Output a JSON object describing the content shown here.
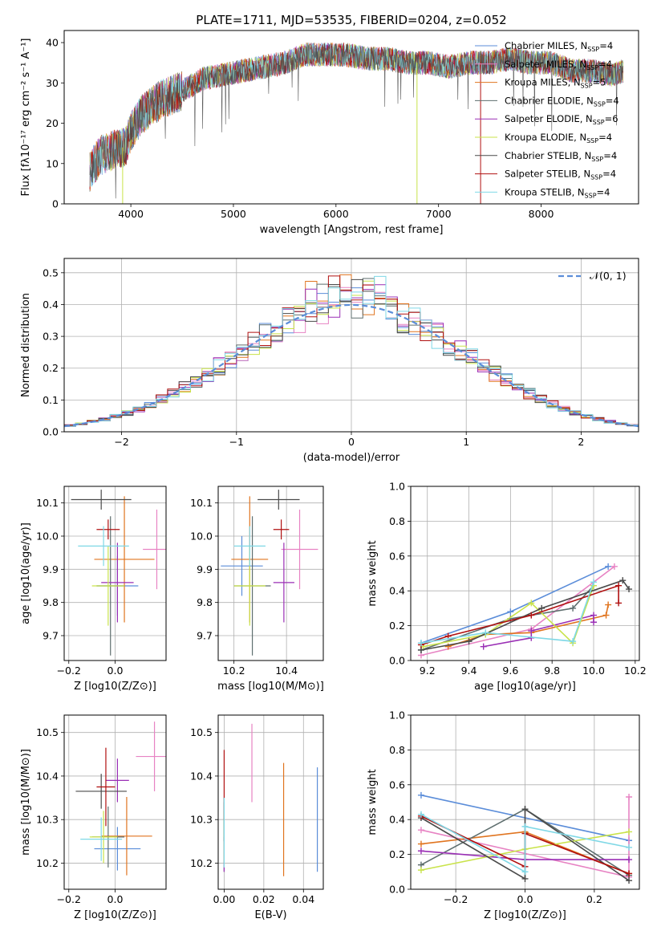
{
  "figure_title": "PLATE=1711, MJD=53535, FIBERID=0204, z=0.052",
  "chart_data": [
    {
      "id": "spectrum",
      "type": "line",
      "title": "PLATE=1711, MJD=53535, FIBERID=0204, z=0.052",
      "xlabel": "wavelength [Angstrom, rest frame]",
      "ylabel": "Flux [fλ10⁻¹⁷ erg cm⁻² s⁻¹ A⁻¹]",
      "xlim": [
        3350,
        8950
      ],
      "ylim": [
        0,
        43
      ],
      "xticks": [
        4000,
        5000,
        6000,
        7000,
        8000
      ],
      "yticks": [
        0,
        10,
        20,
        30,
        40
      ],
      "grid": false,
      "legend_position": "upper-right",
      "series": [
        {
          "name": "Chabrier MILES, N_SSP=4",
          "color": "#5b8dd9"
        },
        {
          "name": "Salpeter MILES, N_SSP=4",
          "color": "#e783c3"
        },
        {
          "name": "Kroupa MILES, N_SSP=5",
          "color": "#e0741f"
        },
        {
          "name": "Chabrier ELODIE, N_SSP=4",
          "color": "#5e6e6e"
        },
        {
          "name": "Salpeter ELODIE, N_SSP=6",
          "color": "#9a2fb5"
        },
        {
          "name": "Kroupa ELODIE, N_SSP=4",
          "color": "#c9e34a"
        },
        {
          "name": "Chabrier STELIB, N_SSP=4",
          "color": "#4a4a4a"
        },
        {
          "name": "Salpeter STELIB, N_SSP=4",
          "color": "#b01010"
        },
        {
          "name": "Kroupa STELIB, N_SSP=4",
          "color": "#7fd8e6"
        }
      ],
      "continuum": {
        "x": [
          3600,
          3700,
          3800,
          3900,
          3950,
          4000,
          4100,
          4200,
          4300,
          4400,
          4500,
          4700,
          4900,
          5100,
          5300,
          5500,
          5700,
          5900,
          6100,
          6300,
          6500,
          6700,
          6900,
          7100,
          7300,
          7500,
          7700,
          7900,
          8100,
          8300,
          8500,
          8700,
          8800
        ],
        "y": [
          8,
          12,
          13,
          14,
          14,
          18,
          22,
          24,
          26,
          27,
          28,
          31,
          32,
          33,
          34,
          35,
          37,
          37,
          37,
          36,
          36,
          35,
          35,
          34,
          35,
          35,
          36,
          35,
          35,
          33,
          33,
          32,
          33
        ]
      }
    },
    {
      "id": "residuals",
      "type": "area",
      "xlabel": "(data-model)/error",
      "ylabel": "Normed distribution",
      "xlim": [
        -2.5,
        2.5
      ],
      "ylim": [
        0,
        0.545
      ],
      "xticks": [
        -2,
        -1,
        0,
        1,
        2
      ],
      "yticks": [
        0.0,
        0.1,
        0.2,
        0.3,
        0.4,
        0.5
      ],
      "grid": true,
      "legend_position": "upper-right",
      "legend": [
        {
          "name": "𝒩(0, 1)",
          "color": "#5b8dd9",
          "dashed": true
        }
      ],
      "bin_width": 0.1
    },
    {
      "id": "z-age",
      "type": "scatter",
      "xlabel": "Z [log10(Z/Z⊙)]",
      "ylabel": "age  [log10(age/yr)]",
      "xlim": [
        -0.22,
        0.22
      ],
      "ylim": [
        9.625,
        10.15
      ],
      "xticks": [
        -0.2,
        0.0
      ],
      "yticks": [
        9.7,
        9.8,
        9.9,
        10.0,
        10.1
      ],
      "grid": true,
      "points": [
        {
          "x": 0.01,
          "y": 9.85,
          "xerr": 0.09,
          "yerr": 0.09,
          "color": "#5b8dd9"
        },
        {
          "x": 0.18,
          "y": 9.96,
          "xerr": 0.06,
          "yerr": 0.12,
          "color": "#e783c3"
        },
        {
          "x": 0.04,
          "y": 9.93,
          "xerr": 0.13,
          "yerr": 0.19,
          "color": "#e0741f"
        },
        {
          "x": -0.02,
          "y": 9.85,
          "xerr": 0.06,
          "yerr": 0.21,
          "color": "#5e6e6e"
        },
        {
          "x": 0.01,
          "y": 9.86,
          "xerr": 0.07,
          "yerr": 0.12,
          "color": "#9a2fb5"
        },
        {
          "x": -0.03,
          "y": 9.85,
          "xerr": 0.07,
          "yerr": 0.12,
          "color": "#c9e34a"
        },
        {
          "x": -0.06,
          "y": 10.11,
          "xerr": 0.13,
          "yerr": 0.03,
          "color": "#4a4a4a"
        },
        {
          "x": -0.03,
          "y": 10.02,
          "xerr": 0.05,
          "yerr": 0.03,
          "color": "#b01010"
        },
        {
          "x": -0.05,
          "y": 9.97,
          "xerr": 0.11,
          "yerr": 0.06,
          "color": "#7fd8e6"
        }
      ]
    },
    {
      "id": "mass-age",
      "type": "scatter",
      "xlabel": "mass [log10(M/M⊙)]",
      "ylabel": "",
      "xlim": [
        10.14,
        10.54
      ],
      "ylim": [
        9.625,
        10.15
      ],
      "xticks": [
        10.2,
        10.4
      ],
      "yticks": [
        9.7,
        9.8,
        9.9,
        10.0,
        10.1
      ],
      "grid": true,
      "points": [
        {
          "x": 10.23,
          "y": 9.91,
          "xerr": 0.08,
          "yerr": 0.09,
          "color": "#5b8dd9"
        },
        {
          "x": 10.45,
          "y": 9.96,
          "xerr": 0.07,
          "yerr": 0.12,
          "color": "#e783c3"
        },
        {
          "x": 10.26,
          "y": 9.93,
          "xerr": 0.07,
          "yerr": 0.19,
          "color": "#e0741f"
        },
        {
          "x": 10.27,
          "y": 9.85,
          "xerr": 0.07,
          "yerr": 0.21,
          "color": "#5e6e6e"
        },
        {
          "x": 10.39,
          "y": 9.86,
          "xerr": 0.04,
          "yerr": 0.12,
          "color": "#9a2fb5"
        },
        {
          "x": 10.26,
          "y": 9.85,
          "xerr": 0.06,
          "yerr": 0.12,
          "color": "#c9e34a"
        },
        {
          "x": 10.37,
          "y": 10.11,
          "xerr": 0.08,
          "yerr": 0.03,
          "color": "#4a4a4a"
        },
        {
          "x": 10.38,
          "y": 10.02,
          "xerr": 0.03,
          "yerr": 0.03,
          "color": "#b01010"
        },
        {
          "x": 10.26,
          "y": 9.97,
          "xerr": 0.06,
          "yerr": 0.06,
          "color": "#7fd8e6"
        }
      ]
    },
    {
      "id": "age-weight",
      "type": "line",
      "xlabel": "age  [log10(age/yr)]",
      "ylabel": "mass weight",
      "xlim": [
        9.12,
        10.22
      ],
      "ylim": [
        0,
        1.0
      ],
      "xticks": [
        9.2,
        9.4,
        9.6,
        9.8,
        10.0,
        10.2
      ],
      "yticks": [
        0.0,
        0.2,
        0.4,
        0.6,
        0.8,
        1.0
      ],
      "grid": true,
      "series": [
        {
          "color": "#5b8dd9",
          "points": [
            [
              9.17,
              0.1
            ],
            [
              9.6,
              0.28
            ],
            [
              10.07,
              0.54
            ]
          ]
        },
        {
          "color": "#e783c3",
          "points": [
            [
              9.17,
              0.03
            ],
            [
              9.7,
              0.18
            ],
            [
              10.1,
              0.54
            ]
          ]
        },
        {
          "color": "#e0741f",
          "points": [
            [
              9.3,
              0.08
            ],
            [
              9.48,
              0.15
            ],
            [
              9.7,
              0.16
            ],
            [
              10.06,
              0.26
            ],
            [
              10.07,
              0.32
            ]
          ]
        },
        {
          "color": "#5e6e6e",
          "points": [
            [
              9.17,
              0.06
            ],
            [
              9.6,
              0.24
            ],
            [
              9.9,
              0.3
            ],
            [
              10.0,
              0.43
            ]
          ]
        },
        {
          "color": "#9a2fb5",
          "points": [
            [
              9.47,
              0.08
            ],
            [
              9.7,
              0.13
            ],
            [
              9.7,
              0.17
            ],
            [
              10.0,
              0.26
            ],
            [
              10.0,
              0.22
            ]
          ]
        },
        {
          "color": "#c9e34a",
          "points": [
            [
              9.18,
              0.08
            ],
            [
              9.48,
              0.15
            ],
            [
              9.7,
              0.33
            ],
            [
              9.9,
              0.1
            ],
            [
              10.0,
              0.43
            ]
          ]
        },
        {
          "color": "#4a4a4a",
          "points": [
            [
              9.17,
              0.06
            ],
            [
              9.4,
              0.11
            ],
            [
              9.75,
              0.3
            ],
            [
              10.14,
              0.46
            ],
            [
              10.17,
              0.41
            ]
          ]
        },
        {
          "color": "#b01010",
          "points": [
            [
              9.17,
              0.09
            ],
            [
              9.3,
              0.14
            ],
            [
              9.7,
              0.26
            ],
            [
              10.12,
              0.43
            ],
            [
              10.12,
              0.33
            ]
          ]
        },
        {
          "color": "#7fd8e6",
          "points": [
            [
              9.17,
              0.1
            ],
            [
              9.48,
              0.16
            ],
            [
              9.9,
              0.11
            ],
            [
              10.0,
              0.45
            ]
          ]
        }
      ]
    },
    {
      "id": "z-mass",
      "type": "scatter",
      "xlabel": "Z [log10(Z/Z⊙)]",
      "ylabel": "mass [log10(M/M⊙)]",
      "xlim": [
        -0.22,
        0.22
      ],
      "ylim": [
        10.14,
        10.54
      ],
      "xticks": [
        -0.2,
        0.0
      ],
      "yticks": [
        10.2,
        10.3,
        10.4,
        10.5
      ],
      "grid": true,
      "points": [
        {
          "x": 0.01,
          "y": 10.233,
          "xerr": 0.1,
          "yerr": 0.05,
          "color": "#5b8dd9"
        },
        {
          "x": 0.17,
          "y": 10.445,
          "xerr": 0.08,
          "yerr": 0.08,
          "color": "#e783c3"
        },
        {
          "x": 0.05,
          "y": 10.262,
          "xerr": 0.11,
          "yerr": 0.09,
          "color": "#e0741f"
        },
        {
          "x": -0.03,
          "y": 10.26,
          "xerr": 0.07,
          "yerr": 0.07,
          "color": "#5e6e6e"
        },
        {
          "x": 0.01,
          "y": 10.39,
          "xerr": 0.05,
          "yerr": 0.05,
          "color": "#9a2fb5"
        },
        {
          "x": -0.05,
          "y": 10.26,
          "xerr": 0.06,
          "yerr": 0.06,
          "color": "#c9e34a"
        },
        {
          "x": -0.06,
          "y": 10.365,
          "xerr": 0.11,
          "yerr": 0.04,
          "color": "#4a4a4a"
        },
        {
          "x": -0.04,
          "y": 10.375,
          "xerr": 0.04,
          "yerr": 0.09,
          "color": "#b01010"
        },
        {
          "x": -0.06,
          "y": 10.255,
          "xerr": 0.09,
          "yerr": 0.05,
          "color": "#7fd8e6"
        }
      ]
    },
    {
      "id": "ebv-mass",
      "type": "scatter",
      "xlabel": "E(B-V)",
      "ylabel": "",
      "xlim": [
        -0.003,
        0.05
      ],
      "ylim": [
        10.14,
        10.54
      ],
      "xticks": [
        0.0,
        0.02,
        0.04
      ],
      "yticks": [
        10.2,
        10.3,
        10.4,
        10.5
      ],
      "grid": true,
      "points": [
        {
          "x": 0.047,
          "y": 10.3,
          "xerr": 0,
          "yerr": 0.12,
          "color": "#5b8dd9"
        },
        {
          "x": 0.014,
          "y": 10.43,
          "xerr": 0,
          "yerr": 0.09,
          "color": "#e783c3"
        },
        {
          "x": 0.03,
          "y": 10.3,
          "xerr": 0,
          "yerr": 0.13,
          "color": "#e0741f"
        },
        {
          "x": 0.0,
          "y": 10.26,
          "xerr": 0,
          "yerr": 0.08,
          "color": "#5e6e6e"
        },
        {
          "x": 0.0,
          "y": 10.22,
          "xerr": 0,
          "yerr": 0.04,
          "color": "#9a2fb5"
        },
        {
          "x": 0.0,
          "y": 10.26,
          "xerr": 0,
          "yerr": 0.06,
          "color": "#c9e34a"
        },
        {
          "x": 0.0,
          "y": 10.3,
          "xerr": 0,
          "yerr": 0.05,
          "color": "#4a4a4a"
        },
        {
          "x": 0.0,
          "y": 10.38,
          "xerr": 0,
          "yerr": 0.08,
          "color": "#b01010"
        },
        {
          "x": 0.0,
          "y": 10.27,
          "xerr": 0,
          "yerr": 0.08,
          "color": "#7fd8e6"
        }
      ]
    },
    {
      "id": "z-weight",
      "type": "line",
      "xlabel": "Z [log10(Z/Z⊙)]",
      "ylabel": "mass weight",
      "xlim": [
        -0.33,
        0.33
      ],
      "ylim": [
        0,
        1.0
      ],
      "xticks": [
        -0.2,
        0.0,
        0.2
      ],
      "yticks": [
        0.0,
        0.2,
        0.4,
        0.6,
        0.8,
        1.0
      ],
      "grid": true,
      "series": [
        {
          "color": "#5b8dd9",
          "points": [
            [
              -0.3,
              0.54
            ],
            [
              0.3,
              0.28
            ]
          ]
        },
        {
          "color": "#e783c3",
          "points": [
            [
              -0.3,
              0.34
            ],
            [
              0.3,
              0.07
            ],
            [
              0.3,
              0.53
            ]
          ]
        },
        {
          "color": "#e0741f",
          "points": [
            [
              -0.3,
              0.26
            ],
            [
              0.0,
              0.33
            ],
            [
              0.3,
              0.09
            ]
          ]
        },
        {
          "color": "#5e6e6e",
          "points": [
            [
              -0.3,
              0.14
            ],
            [
              0.0,
              0.46
            ],
            [
              0.3,
              0.08
            ]
          ]
        },
        {
          "color": "#9a2fb5",
          "points": [
            [
              -0.3,
              0.22
            ],
            [
              0.0,
              0.17
            ],
            [
              0.3,
              0.17
            ]
          ]
        },
        {
          "color": "#c9e34a",
          "points": [
            [
              -0.3,
              0.11
            ],
            [
              0.0,
              0.23
            ],
            [
              0.3,
              0.33
            ]
          ]
        },
        {
          "color": "#4a4a4a",
          "points": [
            [
              -0.3,
              0.41
            ],
            [
              0.0,
              0.06
            ],
            [
              0.0,
              0.46
            ],
            [
              0.3,
              0.05
            ]
          ]
        },
        {
          "color": "#b01010",
          "points": [
            [
              -0.3,
              0.42
            ],
            [
              0.0,
              0.13
            ],
            [
              0.0,
              0.32
            ],
            [
              0.3,
              0.09
            ]
          ]
        },
        {
          "color": "#7fd8e6",
          "points": [
            [
              -0.3,
              0.43
            ],
            [
              0.0,
              0.1
            ],
            [
              0.0,
              0.36
            ],
            [
              0.3,
              0.24
            ]
          ]
        }
      ]
    }
  ]
}
